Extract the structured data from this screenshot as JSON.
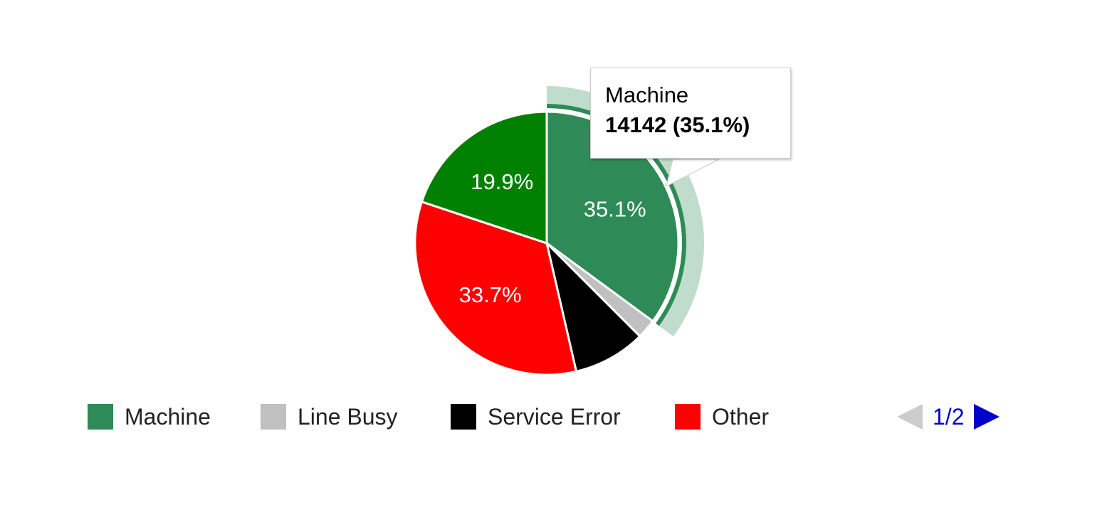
{
  "chart_data": {
    "type": "pie",
    "title": "",
    "slices": [
      {
        "label": "Machine",
        "value": 14142,
        "percent": 35.1,
        "color": "#2e8b57",
        "label_text": "35.1%"
      },
      {
        "label": "Line Busy",
        "percent": 2.4,
        "color": "#c0c0c0",
        "label_text": ""
      },
      {
        "label": "Service Error",
        "percent": 8.9,
        "color": "#000000",
        "label_text": ""
      },
      {
        "label": "Other",
        "percent": 33.7,
        "color": "#ff0000",
        "label_text": "33.7%"
      },
      {
        "label": "(legend page 2 item)",
        "percent": 19.9,
        "color": "#008000",
        "label_text": "19.9%"
      }
    ],
    "highlighted_slice": "Machine",
    "legend_position": "bottom",
    "legend_page": "1/2"
  },
  "tooltip": {
    "name": "Machine",
    "value": "14142 (35.1%)"
  },
  "legend": {
    "items": [
      {
        "label": "Machine",
        "color": "#2e8b57"
      },
      {
        "label": "Line Busy",
        "color": "#c0c0c0"
      },
      {
        "label": "Service Error",
        "color": "#000000"
      },
      {
        "label": "Other",
        "color": "#ff0000"
      }
    ],
    "page": "1/2",
    "prev_color": "#cccccc",
    "next_color": "#0000cc"
  }
}
